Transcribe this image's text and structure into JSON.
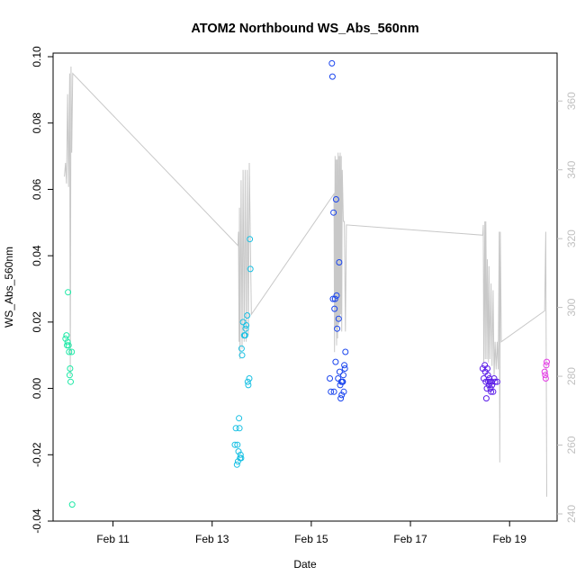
{
  "chart_data": {
    "type": "scatter",
    "title": "ATOM2 Northbound WS_Abs_560nm",
    "xlabel": "Date",
    "ylabel": "WS_Abs_560nm",
    "ylim": [
      -0.04,
      0.1
    ],
    "y_ticks": [
      "-0.04",
      "-0.02",
      "0.00",
      "0.02",
      "0.04",
      "0.06",
      "0.08",
      "0.10"
    ],
    "y_tick_values": [
      -0.04,
      -0.02,
      0.0,
      0.02,
      0.04,
      0.06,
      0.08,
      0.1
    ],
    "x_ticks": [
      "Feb 11",
      "Feb 13",
      "Feb 15",
      "Feb 17",
      "Feb 19"
    ],
    "x_tick_values": [
      "2016-02-11",
      "2016-02-13",
      "2016-02-15",
      "2016-02-17",
      "2016-02-19"
    ],
    "xlim": [
      "2016-02-09T19:00",
      "2016-02-19T23:00"
    ],
    "y2lim": [
      240,
      370
    ],
    "y2_ticks": [
      "240",
      "260",
      "280",
      "300",
      "320",
      "340",
      "360"
    ],
    "y2_tick_values": [
      240,
      260,
      280,
      300,
      320,
      340,
      360
    ],
    "grid": false,
    "colors": {
      "frame": "#000000",
      "line": "#c8c8c8",
      "secondary_axis": "#c0c0c0"
    },
    "series": [
      {
        "color": "#1de9a6",
        "points": [
          [
            "2016-02-10T01:00",
            0.015
          ],
          [
            "2016-02-10T01:30",
            0.016
          ],
          [
            "2016-02-10T01:45",
            0.013
          ],
          [
            "2016-02-10T02:00",
            0.014
          ],
          [
            "2016-02-10T02:15",
            0.029
          ],
          [
            "2016-02-10T02:30",
            0.013
          ],
          [
            "2016-02-10T02:45",
            0.011
          ],
          [
            "2016-02-10T03:00",
            0.004
          ],
          [
            "2016-02-10T03:15",
            0.006
          ],
          [
            "2016-02-10T03:30",
            0.002
          ],
          [
            "2016-02-10T04:00",
            0.011
          ],
          [
            "2016-02-10T04:15",
            -0.035
          ]
        ]
      },
      {
        "color": "#18c0e3",
        "points": [
          [
            "2016-02-13T11:00",
            -0.017
          ],
          [
            "2016-02-13T11:30",
            -0.012
          ],
          [
            "2016-02-13T12:00",
            -0.023
          ],
          [
            "2016-02-13T12:15",
            -0.017
          ],
          [
            "2016-02-13T12:30",
            -0.022
          ],
          [
            "2016-02-13T12:45",
            -0.019
          ],
          [
            "2016-02-13T13:00",
            -0.009
          ],
          [
            "2016-02-13T13:15",
            -0.012
          ],
          [
            "2016-02-13T13:30",
            -0.021
          ],
          [
            "2016-02-13T13:45",
            -0.02
          ],
          [
            "2016-02-13T14:00",
            -0.021
          ],
          [
            "2016-02-13T14:15",
            0.012
          ],
          [
            "2016-02-13T14:30",
            0.01
          ],
          [
            "2016-02-13T15:00",
            0.02
          ],
          [
            "2016-02-13T15:30",
            0.016
          ],
          [
            "2016-02-13T16:00",
            0.016
          ],
          [
            "2016-02-13T16:15",
            0.018
          ],
          [
            "2016-02-13T16:30",
            0.019
          ],
          [
            "2016-02-13T17:00",
            0.022
          ],
          [
            "2016-02-13T17:15",
            0.002
          ],
          [
            "2016-02-13T17:30",
            0.001
          ],
          [
            "2016-02-13T18:00",
            0.003
          ],
          [
            "2016-02-13T18:15",
            0.045
          ],
          [
            "2016-02-13T18:30",
            0.036
          ]
        ]
      },
      {
        "color": "#1a45ee",
        "points": [
          [
            "2016-02-15T09:00",
            0.003
          ],
          [
            "2016-02-15T09:30",
            -0.001
          ],
          [
            "2016-02-15T10:00",
            0.098
          ],
          [
            "2016-02-15T10:15",
            0.094
          ],
          [
            "2016-02-15T10:30",
            0.027
          ],
          [
            "2016-02-15T10:45",
            0.053
          ],
          [
            "2016-02-15T11:00",
            -0.001
          ],
          [
            "2016-02-15T11:15",
            0.024
          ],
          [
            "2016-02-15T11:30",
            0.027
          ],
          [
            "2016-02-15T11:45",
            0.008
          ],
          [
            "2016-02-15T12:00",
            0.057
          ],
          [
            "2016-02-15T12:15",
            0.028
          ],
          [
            "2016-02-15T12:30",
            0.018
          ],
          [
            "2016-02-15T13:00",
            0.003
          ],
          [
            "2016-02-15T13:15",
            0.021
          ],
          [
            "2016-02-15T13:30",
            0.038
          ],
          [
            "2016-02-15T13:45",
            0.005
          ],
          [
            "2016-02-15T14:00",
            0.001
          ],
          [
            "2016-02-15T14:15",
            -0.003
          ],
          [
            "2016-02-15T14:30",
            0.002
          ],
          [
            "2016-02-15T14:45",
            -0.002
          ],
          [
            "2016-02-15T15:00",
            0.002
          ],
          [
            "2016-02-15T15:15",
            0.002
          ],
          [
            "2016-02-15T15:30",
            0.004
          ],
          [
            "2016-02-15T15:45",
            -0.001
          ],
          [
            "2016-02-15T16:00",
            0.007
          ],
          [
            "2016-02-15T16:15",
            0.006
          ],
          [
            "2016-02-15T16:30",
            0.011
          ]
        ]
      },
      {
        "color": "#5c1ee8",
        "points": [
          [
            "2016-02-18T11:00",
            0.006
          ],
          [
            "2016-02-18T11:30",
            0.003
          ],
          [
            "2016-02-18T12:00",
            0.007
          ],
          [
            "2016-02-18T12:15",
            0.005
          ],
          [
            "2016-02-18T12:30",
            0.002
          ],
          [
            "2016-02-18T12:45",
            -0.003
          ],
          [
            "2016-02-18T13:00",
            0.0
          ],
          [
            "2016-02-18T13:15",
            0.006
          ],
          [
            "2016-02-18T13:30",
            0.004
          ],
          [
            "2016-02-18T13:45",
            0.002
          ],
          [
            "2016-02-18T14:00",
            0.001
          ],
          [
            "2016-02-18T14:15",
            0.003
          ],
          [
            "2016-02-18T14:30",
            0.002
          ],
          [
            "2016-02-18T14:45",
            0.0
          ],
          [
            "2016-02-18T15:00",
            -0.001
          ],
          [
            "2016-02-18T15:15",
            0.002
          ],
          [
            "2016-02-18T15:30",
            0.001
          ],
          [
            "2016-02-18T16:00",
            -0.001
          ],
          [
            "2016-02-18T16:30",
            0.003
          ],
          [
            "2016-02-18T17:00",
            0.002
          ],
          [
            "2016-02-18T18:00",
            0.002
          ]
        ]
      },
      {
        "color": "#e53be6",
        "points": [
          [
            "2016-02-19T17:00",
            0.005
          ],
          [
            "2016-02-19T17:15",
            0.004
          ],
          [
            "2016-02-19T17:30",
            0.003
          ],
          [
            "2016-02-19T17:45",
            0.007
          ],
          [
            "2016-02-19T18:00",
            0.008
          ]
        ]
      }
    ],
    "line_series": {
      "axis": "right",
      "color": "#c8c8c8",
      "points": [
        [
          "2016-02-10T00:30",
          338
        ],
        [
          "2016-02-10T01:00",
          342
        ],
        [
          "2016-02-10T01:30",
          336
        ],
        [
          "2016-02-10T02:00",
          362
        ],
        [
          "2016-02-10T02:30",
          335
        ],
        [
          "2016-02-10T03:00",
          368
        ],
        [
          "2016-02-10T03:20",
          280
        ],
        [
          "2016-02-10T03:40",
          370
        ],
        [
          "2016-02-10T04:00",
          345
        ],
        [
          "2016-02-10T04:30",
          368
        ],
        [
          "2016-02-13T12:30",
          318
        ],
        [
          "2016-02-13T12:45",
          322
        ],
        [
          "2016-02-13T13:00",
          290
        ],
        [
          "2016-02-13T13:15",
          329
        ],
        [
          "2016-02-13T13:30",
          285
        ],
        [
          "2016-02-13T14:00",
          337
        ],
        [
          "2016-02-13T14:30",
          288
        ],
        [
          "2016-02-13T15:00",
          340
        ],
        [
          "2016-02-13T15:30",
          290
        ],
        [
          "2016-02-13T16:00",
          340
        ],
        [
          "2016-02-13T16:30",
          290
        ],
        [
          "2016-02-13T17:00",
          340
        ],
        [
          "2016-02-13T17:30",
          292
        ],
        [
          "2016-02-13T18:00",
          342
        ],
        [
          "2016-02-13T19:00",
          298
        ],
        [
          "2016-02-15T11:00",
          333
        ],
        [
          "2016-02-15T11:15",
          287
        ],
        [
          "2016-02-15T11:30",
          344
        ],
        [
          "2016-02-15T11:45",
          294
        ],
        [
          "2016-02-15T12:00",
          343
        ],
        [
          "2016-02-15T12:15",
          289
        ],
        [
          "2016-02-15T12:30",
          343
        ],
        [
          "2016-02-15T12:45",
          291
        ],
        [
          "2016-02-15T13:00",
          345
        ],
        [
          "2016-02-15T13:15",
          295
        ],
        [
          "2016-02-15T13:30",
          344
        ],
        [
          "2016-02-15T13:45",
          296
        ],
        [
          "2016-02-15T14:00",
          345
        ],
        [
          "2016-02-15T14:15",
          298
        ],
        [
          "2016-02-15T14:30",
          344
        ],
        [
          "2016-02-15T14:45",
          293
        ],
        [
          "2016-02-15T15:00",
          340
        ],
        [
          "2016-02-15T15:30",
          325
        ],
        [
          "2016-02-15T16:00",
          325
        ],
        [
          "2016-02-15T16:30",
          293
        ],
        [
          "2016-02-15T17:00",
          324
        ],
        [
          "2016-02-18T11:00",
          321
        ],
        [
          "2016-02-18T11:15",
          324
        ],
        [
          "2016-02-18T11:30",
          284
        ],
        [
          "2016-02-18T12:00",
          325
        ],
        [
          "2016-02-18T12:15",
          285
        ],
        [
          "2016-02-18T12:30",
          325
        ],
        [
          "2016-02-18T13:00",
          285
        ],
        [
          "2016-02-18T13:15",
          314
        ],
        [
          "2016-02-18T13:45",
          284
        ],
        [
          "2016-02-18T14:00",
          312
        ],
        [
          "2016-02-18T14:30",
          285
        ],
        [
          "2016-02-18T15:00",
          307
        ],
        [
          "2016-02-18T15:30",
          283
        ],
        [
          "2016-02-18T16:00",
          305
        ],
        [
          "2016-02-18T16:30",
          280
        ],
        [
          "2016-02-18T17:00",
          290
        ],
        [
          "2016-02-18T17:30",
          282
        ],
        [
          "2016-02-18T18:00",
          290
        ],
        [
          "2016-02-18T18:30",
          282
        ],
        [
          "2016-02-18T19:00",
          322
        ],
        [
          "2016-02-18T19:15",
          255
        ],
        [
          "2016-02-18T19:30",
          322
        ],
        [
          "2016-02-18T20:00",
          290
        ],
        [
          "2016-02-19T17:00",
          299
        ],
        [
          "2016-02-19T17:30",
          322
        ],
        [
          "2016-02-19T18:00",
          245
        ]
      ]
    }
  }
}
